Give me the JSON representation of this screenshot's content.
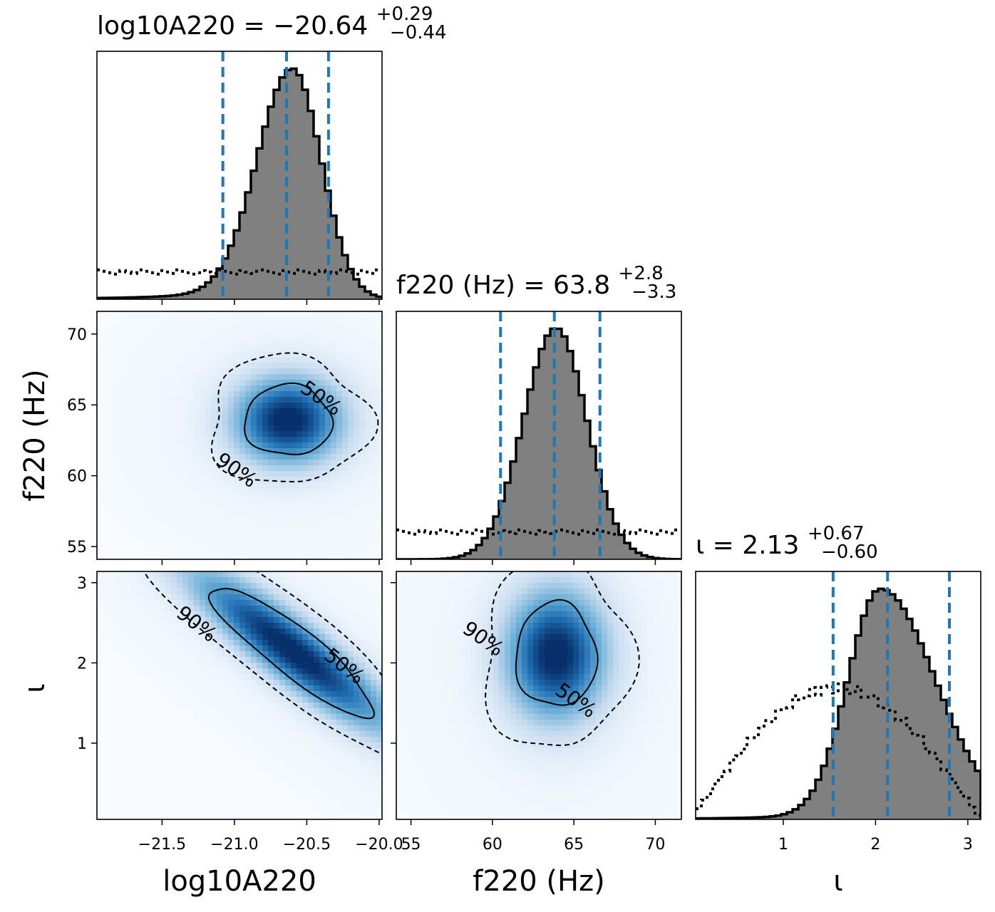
{
  "colors": {
    "hist_fill": "#808080",
    "hist_edge": "#000000",
    "quantile_line": "#1f77b4",
    "density_cmap": [
      "#f7fbff",
      "#c6dbef",
      "#6baed6",
      "#2171b5",
      "#08306b"
    ],
    "contour": "#000000"
  },
  "chart_data": [
    {
      "type": "histogram",
      "panel": "1d-log10A220",
      "title": {
        "main": "log10A220 = −20.64",
        "plus": "+0.29",
        "minus": "−0.44"
      },
      "xlabel": "",
      "xlim": [
        -21.95,
        -19.98
      ],
      "median": -20.64,
      "quantiles": [
        -21.08,
        -20.64,
        -20.35
      ],
      "posterior_shape": {
        "mu": -20.6,
        "sigma_left": 0.24,
        "sigma_right": 0.2,
        "tail": 0.06,
        "tail_scale": 0.55
      },
      "prior": "uniform",
      "xticks": [],
      "ylabels_shown": false
    },
    {
      "type": "heatmap",
      "panel": "2d-log10A220-f220",
      "xlim": [
        -21.95,
        -19.98
      ],
      "ylim": [
        54.1,
        71.6
      ],
      "center": [
        -20.63,
        63.9
      ],
      "contours": [
        {
          "level": "50%",
          "style": "solid",
          "radius": [
            0.24,
            1.7
          ],
          "label_at_deg": 40
        },
        {
          "level": "90%",
          "style": "dashed",
          "radius": [
            0.47,
            4.0
          ],
          "label_at_deg": 230
        }
      ],
      "yticks": [
        "55",
        "60",
        "65",
        "70"
      ],
      "ylabel": "f220 (Hz)"
    },
    {
      "type": "histogram",
      "panel": "1d-f220",
      "title": {
        "main": "f220 (Hz) = 63.8",
        "plus": "+2.8",
        "minus": "−3.3"
      },
      "xlim": [
        54.1,
        71.6
      ],
      "median": 63.8,
      "quantiles": [
        60.5,
        63.8,
        66.6
      ],
      "posterior_shape": {
        "mu": 63.9,
        "sigma_left": 2.0,
        "sigma_right": 1.9,
        "tail": 0.0,
        "tail_scale": 1
      },
      "prior": "uniform"
    },
    {
      "type": "heatmap",
      "panel": "2d-log10A220-iota",
      "xlim": [
        -21.95,
        -19.98
      ],
      "ylim": [
        0.05,
        3.14
      ],
      "center": [
        -20.6,
        2.15
      ],
      "correlation": -0.9,
      "contours": [
        {
          "level": "50%",
          "style": "solid",
          "label_at_deg": 60
        },
        {
          "level": "90%",
          "style": "dashed",
          "label_at_deg": 240
        }
      ],
      "yticks": [
        "1",
        "2",
        "3"
      ],
      "ylabel": "ι",
      "xticks": [
        "−21.5",
        "−21.0",
        "−20.5",
        "−20.0"
      ],
      "xlabel": "log10A220"
    },
    {
      "type": "heatmap",
      "panel": "2d-f220-iota",
      "xlim": [
        54.1,
        71.6
      ],
      "ylim": [
        0.05,
        3.14
      ],
      "center": [
        63.9,
        2.1
      ],
      "contours": [
        {
          "level": "50%",
          "style": "solid",
          "label_at_deg": 300
        },
        {
          "level": "90%",
          "style": "dashed",
          "label_at_deg": 170
        }
      ],
      "xticks": [
        "55",
        "60",
        "65",
        "70"
      ],
      "xlabel": "f220 (Hz)"
    },
    {
      "type": "histogram",
      "panel": "1d-iota",
      "title": {
        "main": "ι = 2.13",
        "plus": "+0.67",
        "minus": "−0.60"
      },
      "xlim": [
        0.05,
        3.14
      ],
      "median": 2.13,
      "quantiles": [
        1.54,
        2.13,
        2.8
      ],
      "posterior_shape": {
        "mu": 2.05,
        "sigma_left": 0.35,
        "sigma_right": 0.6,
        "tail": 0.03,
        "tail_scale": 1
      },
      "prior": "sin",
      "xticks": [
        "1",
        "2",
        "3"
      ],
      "xlabel": "ι"
    }
  ]
}
